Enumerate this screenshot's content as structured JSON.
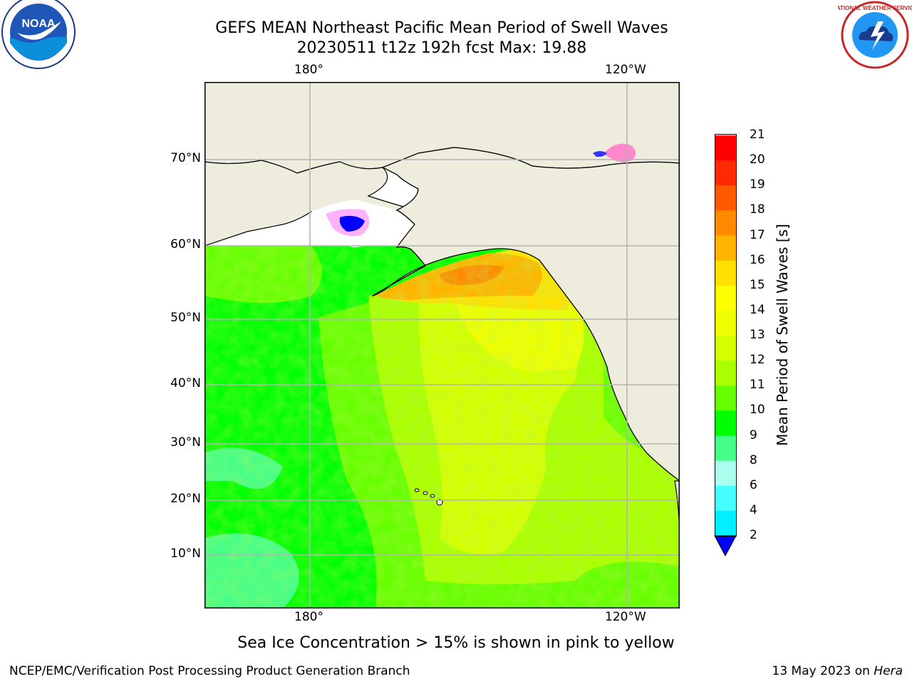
{
  "title": {
    "line1": "GEFS MEAN Northeast Pacific Mean Period of Swell Waves",
    "line2": "20230511 t12z 192h fcst   Max: 19.88"
  },
  "logos": {
    "left": "NOAA",
    "right": "NATIONAL WEATHER SERVICE"
  },
  "map": {
    "lon_labels": [
      "180°",
      "120°W"
    ],
    "lat_labels": [
      "70°N",
      "60°N",
      "50°N",
      "40°N",
      "30°N",
      "20°N",
      "10°N"
    ],
    "colors": {
      "land": "#eeecdc",
      "coast": "#000000",
      "grid": "#b4b4b4"
    }
  },
  "colorbar": {
    "label": "Mean Period of Swell Waves [s]",
    "ticks": [
      "21",
      "20",
      "19",
      "18",
      "17",
      "16",
      "15",
      "14",
      "13",
      "12",
      "11",
      "10",
      "9",
      "8",
      "6",
      "4",
      "2"
    ],
    "colors": [
      "#ff0000",
      "#ff2a00",
      "#ff5a00",
      "#ff8a00",
      "#ffb400",
      "#ffe000",
      "#ffff00",
      "#eeff00",
      "#d4ff00",
      "#aaff00",
      "#66ff00",
      "#00ff00",
      "#44ff88",
      "#aaffee",
      "#44ffff",
      "#00f0ff",
      "#0080ff"
    ],
    "under_color": "#0000ff"
  },
  "note": "Sea Ice Concentration > 15% is shown in pink to yellow",
  "footer": {
    "left": "NCEP/EMC/Verification Post Processing Product Generation Branch",
    "date": "13 May 2023 on ",
    "machine": "Hera"
  }
}
